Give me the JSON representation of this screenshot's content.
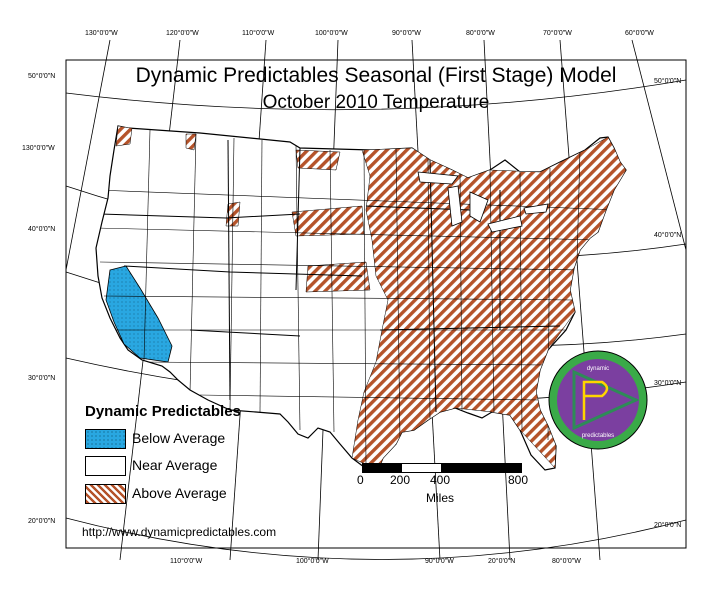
{
  "title": {
    "line1": "Dynamic Predictables Seasonal (First Stage) Model",
    "line2": "October 2010 Temperature"
  },
  "graticule": {
    "top_labels": [
      "130°0'0\"W",
      "120°0'0\"W",
      "110°0'0\"W",
      "100°0'0\"W",
      "90°0'0\"W",
      "80°0'0\"W",
      "70°0'0\"W",
      "60°0'0\"W"
    ],
    "bottom_labels": [
      "110°0'0\"W",
      "100°0'0\"W",
      "90°0'0\"W",
      "20°0'0\"N",
      "80°0'0\"W"
    ],
    "left_labels": [
      "50°0'0\"N",
      "130°0'0\"W",
      "40°0'0\"N",
      "30°0'0\"N",
      "20°0'0\"N"
    ],
    "right_labels": [
      "50°0'0\"N",
      "40°0'0\"N",
      "30°0'0\"N",
      "20°0'0\"N"
    ]
  },
  "legend": {
    "title": "Dynamic Predictables",
    "items": [
      {
        "label": "Below Average",
        "color": "#29a7e1",
        "pattern": "dots"
      },
      {
        "label": "Near Average",
        "color": "#ffffff",
        "pattern": "none"
      },
      {
        "label": "Above Average",
        "color": "#b5532a",
        "pattern": "diagonal-hatch"
      }
    ]
  },
  "scale_bar": {
    "ticks": [
      "0",
      "200",
      "400",
      "800"
    ],
    "unit": "Miles"
  },
  "logo": {
    "text_top": "dynamic",
    "text_bottom": "predictables",
    "colors": {
      "ring": "#3aaa48",
      "inner": "#7b3fa0",
      "triangle": "#2e8b57"
    }
  },
  "website": "http://www.dynamicpredictables.com",
  "colors": {
    "below": "#29a7e1",
    "above": "#b5532a",
    "outline": "#000000"
  }
}
